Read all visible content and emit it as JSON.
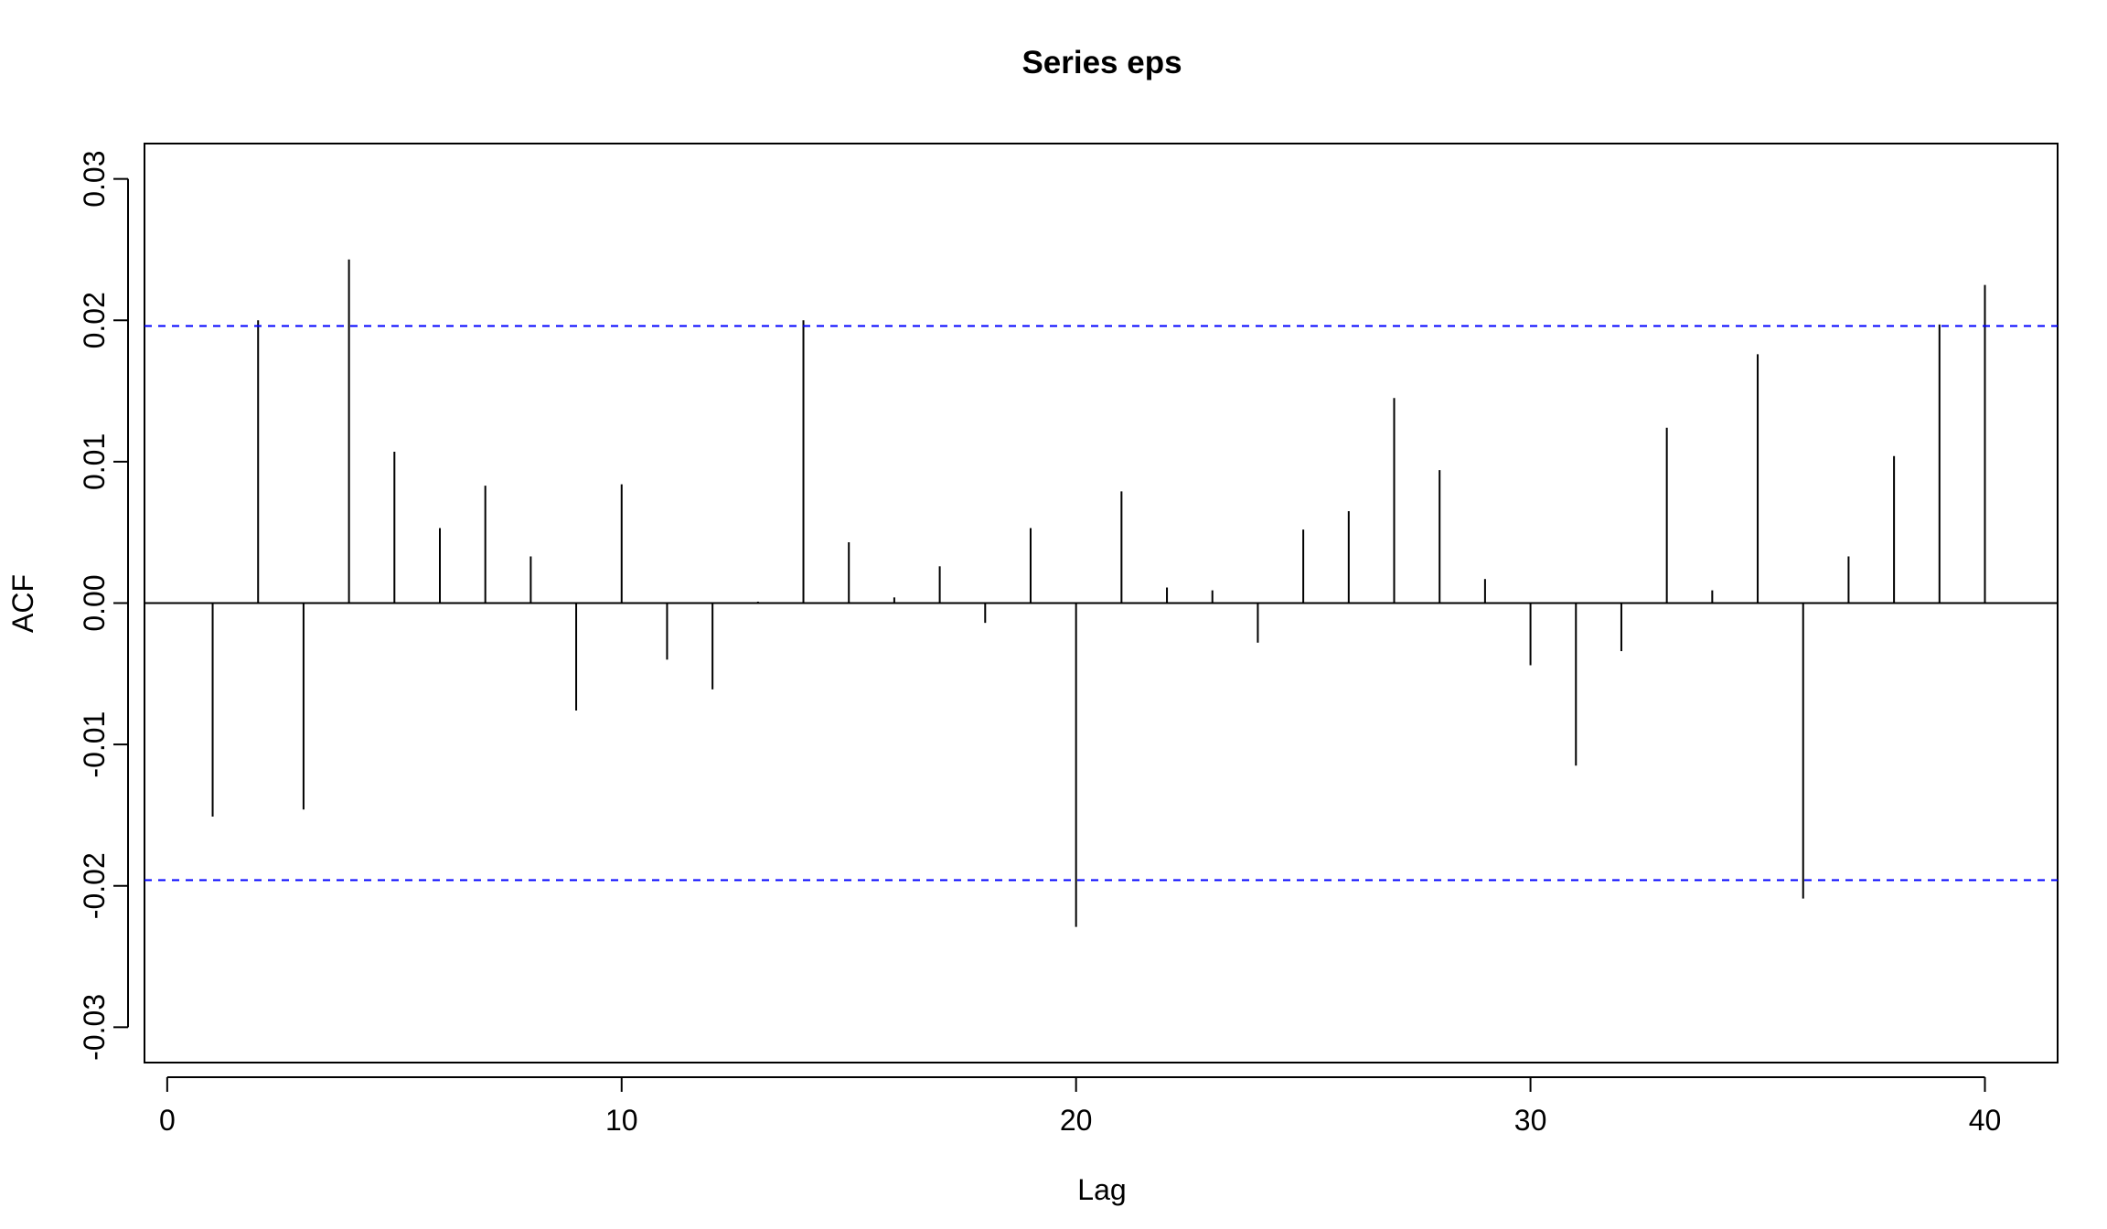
{
  "chart_data": {
    "type": "bar",
    "title": "Series  eps",
    "xlabel": "Lag",
    "ylabel": "ACF",
    "xlim": [
      -0.5,
      41.6
    ],
    "ylim": [
      -0.0325,
      0.0325
    ],
    "x_ticks": [
      0,
      10,
      20,
      30,
      40
    ],
    "x_tick_labels": [
      "0",
      "10",
      "20",
      "30",
      "40"
    ],
    "y_ticks": [
      -0.03,
      -0.02,
      -0.01,
      0.0,
      0.01,
      0.02,
      0.03
    ],
    "y_tick_labels": [
      "-0.03",
      "-0.02",
      "-0.01",
      "0.00",
      "0.01",
      "0.02",
      "0.03"
    ],
    "grid": false,
    "zero_line": 0,
    "confidence_bounds": {
      "upper": 0.0196,
      "lower": -0.0196,
      "color": "#0000ff"
    },
    "lags": [
      1,
      2,
      3,
      4,
      5,
      6,
      7,
      8,
      9,
      10,
      11,
      12,
      13,
      14,
      15,
      16,
      17,
      18,
      19,
      20,
      21,
      22,
      23,
      24,
      25,
      26,
      27,
      28,
      29,
      30,
      31,
      32,
      33,
      34,
      35,
      36,
      37,
      38,
      39,
      40
    ],
    "values": [
      -0.0151,
      0.02,
      -0.0146,
      0.0243,
      0.0107,
      0.0053,
      0.0083,
      0.0033,
      -0.0076,
      0.0084,
      -0.004,
      -0.0061,
      0.0001,
      0.02,
      0.0043,
      0.0004,
      0.0026,
      -0.0014,
      0.0053,
      -0.0229,
      0.0079,
      0.0011,
      0.0009,
      -0.0028,
      0.0052,
      0.0065,
      0.0145,
      0.0094,
      0.0017,
      -0.0044,
      -0.0115,
      -0.0034,
      0.0124,
      0.0009,
      0.0176,
      -0.0209,
      0.0033,
      0.0104,
      0.0197,
      0.0225
    ]
  }
}
